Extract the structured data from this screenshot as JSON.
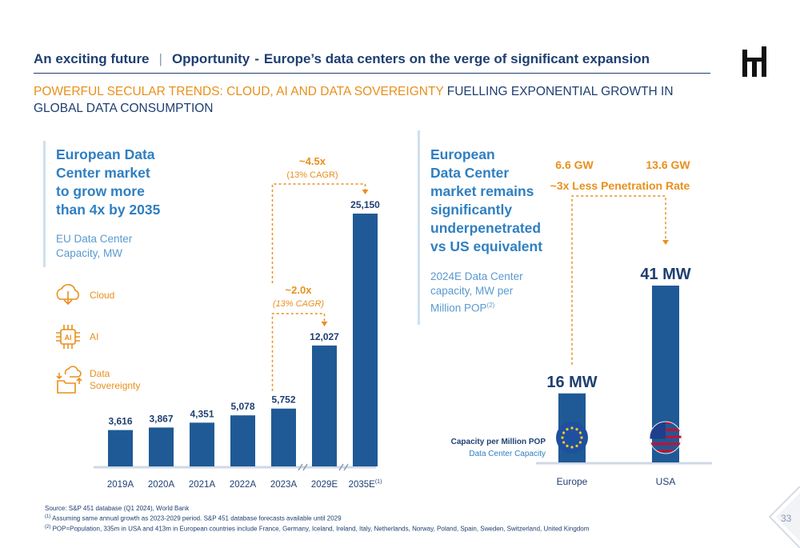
{
  "header": {
    "section": "An exciting future",
    "separator": "|",
    "topic": "Opportunity",
    "dash": "-",
    "headline": "Europe’s data centers on the verge of significant expansion"
  },
  "subtitle": {
    "highlight": "POWERFUL SECULAR TRENDS: CLOUD, AI AND DATA SOVEREIGNTY",
    "rest": " FUELLING EXPONENTIAL GROWTH IN GLOBAL DATA CONSUMPTION"
  },
  "left_panel": {
    "title_lines": [
      "European Data",
      "Center market",
      "to grow more",
      "than 4x by 2035"
    ],
    "sub_lines": [
      "EU Data Center",
      "Capacity, MW"
    ],
    "trends": [
      {
        "icon": "cloud-icon",
        "label_lines": [
          "Cloud"
        ]
      },
      {
        "icon": "ai-chip-icon",
        "label_lines": [
          "AI"
        ]
      },
      {
        "icon": "data-sovereignty-icon",
        "label_lines": [
          "Data",
          "Sovereignty"
        ]
      }
    ]
  },
  "right_panel": {
    "title_lines": [
      "European",
      "Data Center",
      "market remains",
      "significantly",
      "underpenetrated",
      "vs US equivalent"
    ],
    "sub_lines": [
      "2024E Data Center",
      "capacity, MW per",
      "Million POP"
    ],
    "sub_sup": "(2)"
  },
  "chart_data": [
    {
      "type": "bar",
      "categories": [
        "2019A",
        "2020A",
        "2021A",
        "2022A",
        "2023A",
        "2029E",
        "2035E"
      ],
      "category_sups": [
        "",
        "",
        "",
        "",
        "",
        "",
        "(1)"
      ],
      "values": [
        3616,
        3867,
        4351,
        5078,
        5752,
        12027,
        25150
      ],
      "value_labels": [
        "3,616",
        "3,867",
        "4,351",
        "5,078",
        "5,752",
        "12,027",
        "25,150"
      ],
      "ylim": [
        0,
        27000
      ],
      "axis_breaks_after": [
        "2023A",
        "2029E"
      ],
      "annotations": [
        {
          "from": "2023A",
          "to": "2029E",
          "multiple": "~2.0x",
          "cagr": "(13% CAGR)",
          "italic": true
        },
        {
          "from": "2023A",
          "to": "2035E",
          "multiple": "~4.5x",
          "cagr": "(13% CAGR)",
          "italic": false
        }
      ],
      "colors": {
        "bar": "#1f5a96",
        "axis": "#cfd8e6",
        "annotation": "#e8901c",
        "label": "#1f3f72"
      }
    },
    {
      "type": "bar",
      "categories": [
        "Europe",
        "USA"
      ],
      "values": [
        16,
        41
      ],
      "value_labels": [
        "16 MW",
        "41 MW"
      ],
      "top_values": [
        "6.6 GW",
        "13.6 GW"
      ],
      "comparison": "~3x Less Penetration Rate",
      "legend": [
        "Capacity per Million POP",
        "Data Center Capacity"
      ],
      "ylim": [
        0,
        45
      ],
      "flags": [
        "eu-flag-icon",
        "us-flag-icon"
      ],
      "colors": {
        "bar": "#1f5a96",
        "axis": "#cfd8e6",
        "annotation": "#e8901c",
        "legend_primary": "#1f3f72",
        "legend_secondary": "#2f7fc1"
      }
    }
  ],
  "footnotes": {
    "source": "Source: S&P 451 database (Q1 2024), World Bank",
    "note1_sup": "(1)",
    "note1": " Assuming same annual growth as 2023-2029 period. S&P 451 database forecasts available until 2029",
    "note2_sup": "(2)",
    "note2": " POP=Population, 335m in USA and 413m in European countries include France, Germany, Iceland, Ireland, Italy, Netherlands, Norway, Poland, Spain, Sweden, Switzerland, United Kingdom"
  },
  "page_number": "33",
  "brand": {
    "color": "#1f3f72",
    "accent": "#e8901c",
    "light_blue": "#2f7fc1"
  }
}
